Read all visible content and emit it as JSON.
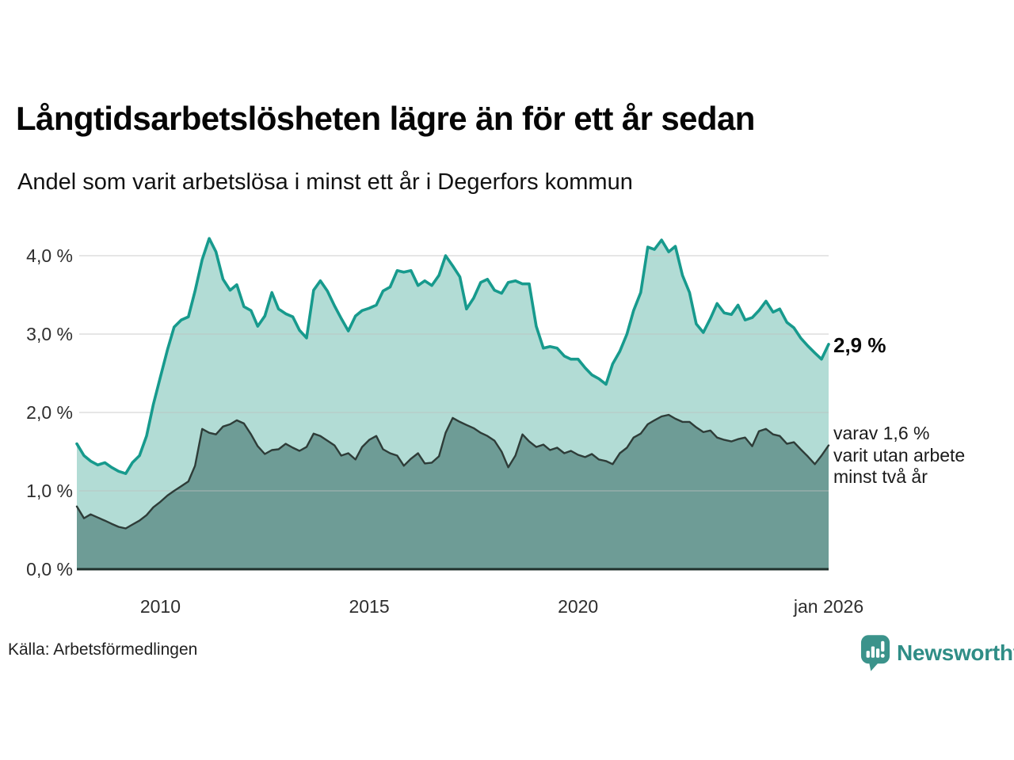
{
  "header": {
    "title": "Långtidsarbetslösheten lägre än för ett år sedan",
    "subtitle": "Andel som varit arbetslösa i minst ett år i Degerfors kommun"
  },
  "footer": {
    "source": "Källa: Arbetsförmedlingen",
    "logo_text": "Newsworthy",
    "logo_icon": "newsworthy-bar-chart-badge"
  },
  "colors": {
    "total_line": "#179a8d",
    "total_fill": "#b2dcd5",
    "two_year_line": "#2e3c38",
    "two_year_fill": "#6e9c96",
    "gridline": "#bfbfbf",
    "axis_baseline": "#20302c",
    "logo_teal": "#3b938b",
    "logo_text_teal": "#2f8d86"
  },
  "chart_data": {
    "type": "area",
    "title": "Långtidsarbetslösheten lägre än för ett år sedan",
    "subtitle": "Andel som varit arbetslösa i minst ett år i Degerfors kommun",
    "xlabel": "",
    "ylabel": "",
    "xlim": [
      2008.0,
      2026.0
    ],
    "ylim": [
      0,
      4.3
    ],
    "grid": true,
    "legend": "none",
    "unit": "%",
    "x": [
      2008.0,
      2008.17,
      2008.33,
      2008.5,
      2008.67,
      2008.83,
      2009.0,
      2009.17,
      2009.33,
      2009.5,
      2009.67,
      2009.83,
      2010.0,
      2010.17,
      2010.33,
      2010.5,
      2010.67,
      2010.83,
      2011.0,
      2011.17,
      2011.33,
      2011.5,
      2011.67,
      2011.83,
      2012.0,
      2012.17,
      2012.33,
      2012.5,
      2012.67,
      2012.83,
      2013.0,
      2013.17,
      2013.33,
      2013.5,
      2013.67,
      2013.83,
      2014.0,
      2014.17,
      2014.33,
      2014.5,
      2014.67,
      2014.83,
      2015.0,
      2015.17,
      2015.33,
      2015.5,
      2015.67,
      2015.83,
      2016.0,
      2016.17,
      2016.33,
      2016.5,
      2016.67,
      2016.83,
      2017.0,
      2017.17,
      2017.33,
      2017.5,
      2017.67,
      2017.83,
      2018.0,
      2018.17,
      2018.33,
      2018.5,
      2018.67,
      2018.83,
      2019.0,
      2019.17,
      2019.33,
      2019.5,
      2019.67,
      2019.83,
      2020.0,
      2020.17,
      2020.33,
      2020.5,
      2020.67,
      2020.83,
      2021.0,
      2021.17,
      2021.33,
      2021.5,
      2021.67,
      2021.83,
      2022.0,
      2022.17,
      2022.33,
      2022.5,
      2022.67,
      2022.83,
      2023.0,
      2023.17,
      2023.33,
      2023.5,
      2023.67,
      2023.83,
      2024.0,
      2024.17,
      2024.33,
      2024.5,
      2024.67,
      2024.83,
      2025.0,
      2025.17,
      2025.33,
      2025.5,
      2025.67,
      2025.83,
      2026.0
    ],
    "series": [
      {
        "name": "Andel som varit arbetslösa i minst ett år",
        "latest_value": 2.9,
        "values": [
          1.6,
          1.45,
          1.38,
          1.33,
          1.36,
          1.3,
          1.25,
          1.22,
          1.36,
          1.45,
          1.7,
          2.1,
          2.45,
          2.8,
          3.09,
          3.18,
          3.22,
          3.55,
          3.95,
          4.22,
          4.05,
          3.7,
          3.56,
          3.63,
          3.35,
          3.3,
          3.1,
          3.23,
          3.53,
          3.32,
          3.26,
          3.22,
          3.05,
          2.95,
          3.56,
          3.68,
          3.55,
          3.36,
          3.2,
          3.04,
          3.23,
          3.3,
          3.33,
          3.37,
          3.55,
          3.6,
          3.81,
          3.79,
          3.81,
          3.62,
          3.68,
          3.62,
          3.75,
          4.0,
          3.87,
          3.73,
          3.32,
          3.46,
          3.66,
          3.7,
          3.56,
          3.52,
          3.66,
          3.68,
          3.64,
          3.64,
          3.1,
          2.82,
          2.84,
          2.82,
          2.72,
          2.68,
          2.68,
          2.57,
          2.48,
          2.43,
          2.36,
          2.62,
          2.78,
          3.0,
          3.3,
          3.53,
          4.11,
          4.08,
          4.2,
          4.05,
          4.12,
          3.75,
          3.53,
          3.13,
          3.02,
          3.2,
          3.39,
          3.27,
          3.25,
          3.37,
          3.18,
          3.21,
          3.3,
          3.42,
          3.28,
          3.32,
          3.15,
          3.08,
          2.95,
          2.85,
          2.76,
          2.68,
          2.87
        ]
      },
      {
        "name": "varav utan arbete minst två år",
        "latest_value": 1.6,
        "values": [
          0.8,
          0.65,
          0.7,
          0.66,
          0.62,
          0.58,
          0.54,
          0.52,
          0.57,
          0.62,
          0.69,
          0.79,
          0.86,
          0.94,
          1.0,
          1.06,
          1.12,
          1.32,
          1.79,
          1.74,
          1.72,
          1.82,
          1.85,
          1.9,
          1.86,
          1.72,
          1.57,
          1.47,
          1.52,
          1.53,
          1.6,
          1.55,
          1.51,
          1.56,
          1.73,
          1.7,
          1.64,
          1.58,
          1.45,
          1.48,
          1.4,
          1.56,
          1.65,
          1.7,
          1.53,
          1.48,
          1.45,
          1.32,
          1.41,
          1.48,
          1.35,
          1.36,
          1.44,
          1.74,
          1.93,
          1.88,
          1.84,
          1.8,
          1.74,
          1.7,
          1.64,
          1.5,
          1.3,
          1.45,
          1.72,
          1.63,
          1.56,
          1.59,
          1.52,
          1.55,
          1.48,
          1.51,
          1.46,
          1.43,
          1.47,
          1.4,
          1.38,
          1.34,
          1.48,
          1.55,
          1.68,
          1.73,
          1.85,
          1.9,
          1.95,
          1.97,
          1.92,
          1.88,
          1.88,
          1.81,
          1.75,
          1.77,
          1.68,
          1.65,
          1.63,
          1.66,
          1.68,
          1.57,
          1.76,
          1.79,
          1.72,
          1.7,
          1.6,
          1.62,
          1.53,
          1.44,
          1.34,
          1.45,
          1.58
        ]
      }
    ],
    "yticks": [
      {
        "label": "0,0 %",
        "value": 0
      },
      {
        "label": "1,0 %",
        "value": 1
      },
      {
        "label": "2,0 %",
        "value": 2
      },
      {
        "label": "3,0 %",
        "value": 3
      },
      {
        "label": "4,0 %",
        "value": 4
      }
    ],
    "xticks": [
      {
        "label": "2010",
        "year": 2010
      },
      {
        "label": "2015",
        "year": 2015
      },
      {
        "label": "2020",
        "year": 2020
      },
      {
        "label": "jan 2026",
        "year": 2026
      }
    ],
    "annotations": {
      "latest_total": "2,9 %",
      "two_year_lines": [
        "varav 1,6 %",
        "varit utan arbete",
        "minst två år"
      ]
    }
  }
}
